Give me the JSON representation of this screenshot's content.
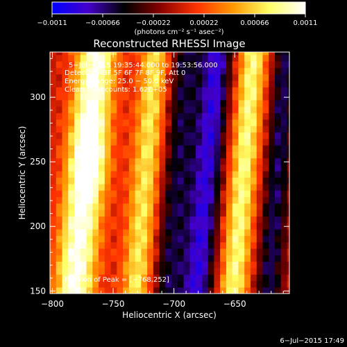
{
  "chart_data": {
    "type": "heatmap",
    "title": "Reconstructed RHESSI Image",
    "xlabel": "Heliocentric X (arcsec)",
    "ylabel": "Heliocentric Y (arcsec)",
    "xlim": [
      -802,
      -605
    ],
    "ylim": [
      148,
      335
    ],
    "xticks": [
      -800,
      -750,
      -700,
      -650
    ],
    "yticks": [
      150,
      200,
      250,
      300
    ],
    "xtick_labels": [
      "−800",
      "−750",
      "−700",
      "−650"
    ],
    "ytick_labels": [
      "150",
      "200",
      "250",
      "300"
    ],
    "colorbar": {
      "unit_label": "(photons cm⁻² s⁻¹ asec⁻²)",
      "range": [
        -0.0011,
        0.0011
      ],
      "ticks": [
        -0.0011,
        -0.00066,
        -0.00022,
        0.00022,
        0.00066,
        0.0011
      ],
      "tick_labels": [
        "−0.0011",
        "−0.00066",
        "−0.00022",
        "0.00022",
        "0.00066",
        "0.0011"
      ],
      "colors": [
        "#0000ff",
        "#4400cc",
        "#000000",
        "#880000",
        "#ff3300",
        "#ff9900",
        "#ffff66",
        "#ffffff"
      ]
    },
    "annotations": [
      "5−Jul−2015 19:35:44.000 to 19:53:56.000",
      "Detectors: 3F 5F 6F 7F 8F 9F, Att 0",
      "Energy Range: 25.0 − 50.0 keV",
      "Clean    Total counts: 1.62E+05",
      "Position of Peak = [−768,252]"
    ],
    "peak": {
      "x": -768,
      "y": 252
    },
    "stripes": [
      {
        "x_center": -773,
        "tilt": 0.1,
        "width": 17,
        "amplitude": 0.0011
      },
      {
        "x_center": -723,
        "tilt": 0.09,
        "width": 13,
        "amplitude": 0.00075
      },
      {
        "x_center": -698,
        "tilt": 0.08,
        "width": 14,
        "amplitude": -0.00055
      },
      {
        "x_center": -673,
        "tilt": 0.09,
        "width": 13,
        "amplitude": -0.00085
      },
      {
        "x_center": -643,
        "tilt": 0.09,
        "width": 12,
        "amplitude": 0.00085
      },
      {
        "x_center": -615,
        "tilt": 0.08,
        "width": 11,
        "amplitude": -0.0006
      }
    ]
  },
  "footer": {
    "timestamp": "6−Jul−2015 17:49"
  }
}
